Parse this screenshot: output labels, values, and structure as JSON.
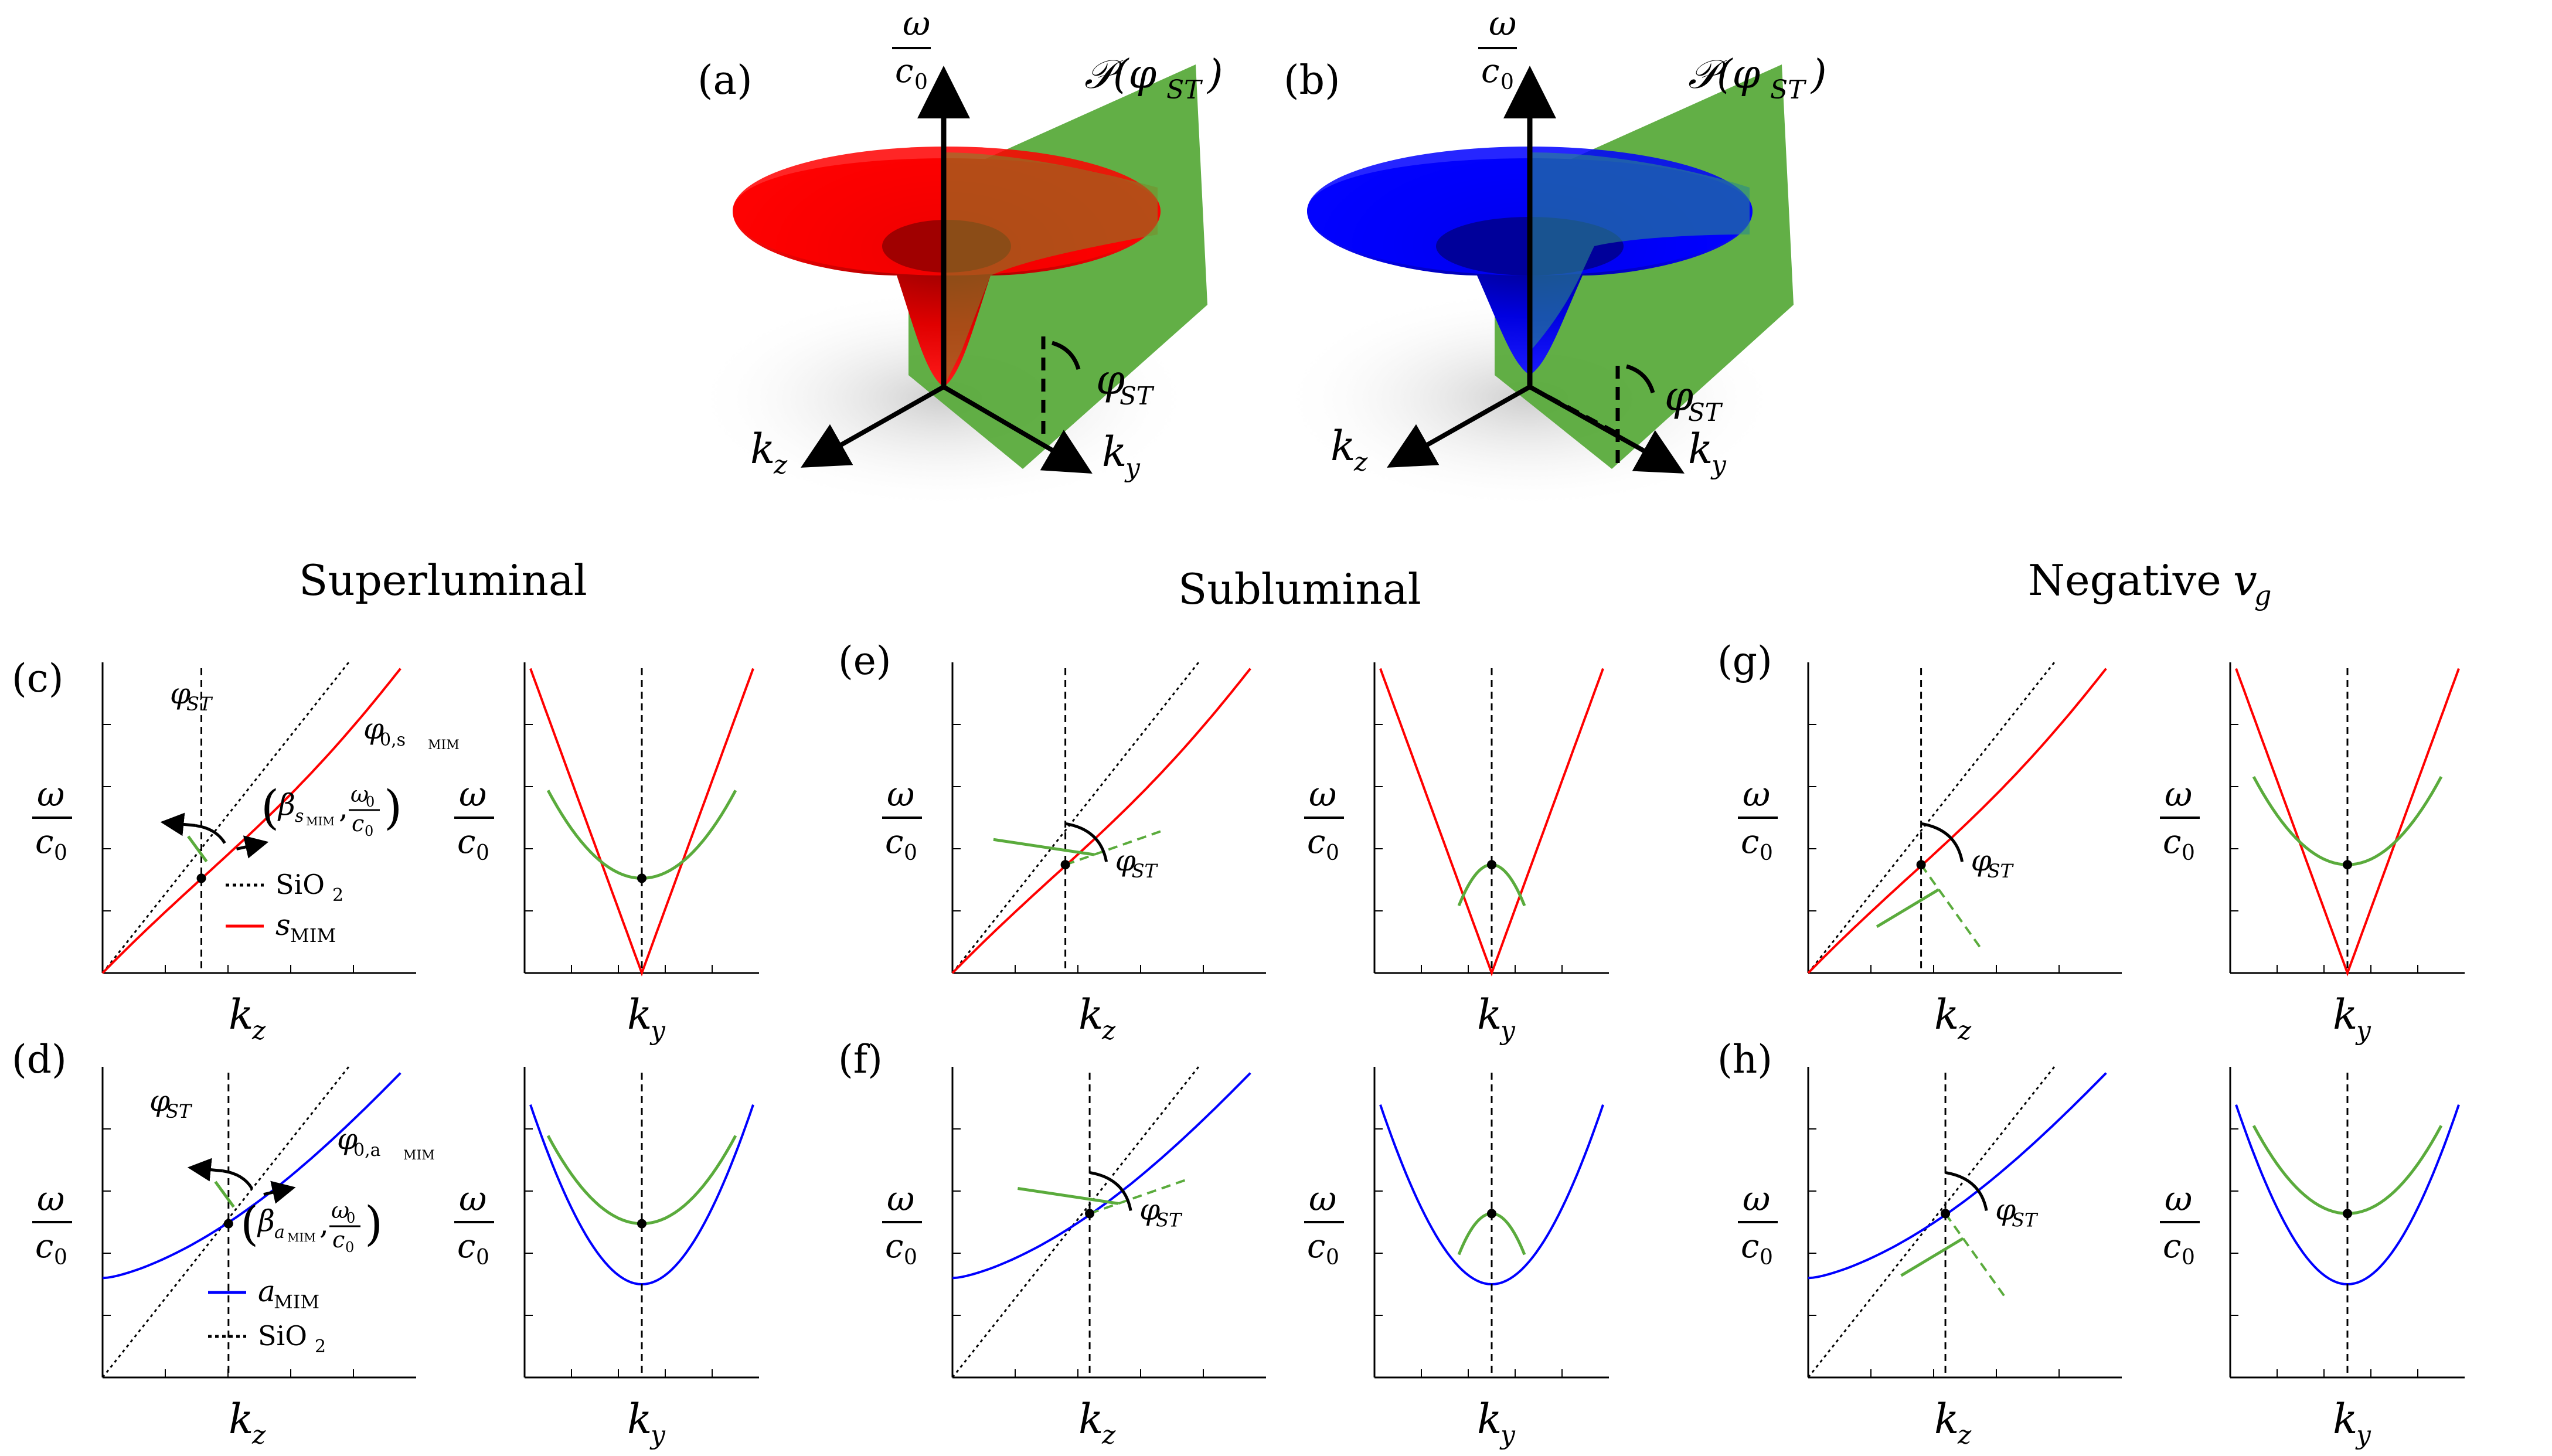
{
  "panel_labels": {
    "a": "(a)",
    "b": "(b)",
    "c": "(c)",
    "d": "(d)",
    "e": "(e)",
    "f": "(f)",
    "g": "(g)",
    "h": "(h)"
  },
  "column_titles": {
    "superluminal": "Superluminal",
    "subluminal": "Subluminal",
    "negative": "Negative ",
    "negative_sym": "v",
    "negative_sub": "g"
  },
  "symbols": {
    "omega": "ω",
    "c0": "c",
    "c0_sub": "0",
    "kz": "k",
    "kz_sub": "z",
    "ky": "k",
    "ky_sub": "y",
    "phi": "φ",
    "phi_sub": "ST",
    "plane": "𝒫(φ",
    "plane_sub": "ST",
    "plane_close": ")",
    "phi0": "φ",
    "phi0_sub_s": "0,s",
    "phi0_sub_a": "0,a",
    "mim": "MIM",
    "beta": "β",
    "beta_sub_s": "s",
    "beta_sub_a": "a",
    "omega0": "ω",
    "omega0_sub": "0"
  },
  "legend_c": {
    "sio2": "SiO",
    "sio2_sub": "2",
    "mode": "s",
    "mode_sub": "MIM"
  },
  "legend_d": {
    "mode": "a",
    "mode_sub": "MIM",
    "sio2": "SiO",
    "sio2_sub": "2"
  },
  "colors": {
    "symmetric": "#ff0000",
    "antisymmetric": "#0000ff",
    "plane": "#5aab3c",
    "light_line": "#000000",
    "axis": "#000000"
  },
  "chart_data": [
    {
      "type": "line",
      "panel": "c",
      "xlabel": "k_z",
      "ylabel": "ω/c0",
      "series": [
        {
          "name": "SiO2",
          "style": "dotted"
        },
        {
          "name": "s_MIM",
          "color": "#ff0000"
        }
      ],
      "annotations": [
        "φ_ST",
        "φ_0,s_MIM",
        "(β_s_MIM, ω0/c0)"
      ]
    },
    {
      "type": "line",
      "panel": "c-right",
      "xlabel": "k_y",
      "ylabel": "ω/c0",
      "series": [
        {
          "name": "s_MIM cone",
          "color": "#ff0000"
        },
        {
          "name": "ST spectrum",
          "color": "#5aab3c",
          "shape": "hyperbola-up"
        }
      ]
    },
    {
      "type": "line",
      "panel": "d",
      "xlabel": "k_z",
      "ylabel": "ω/c0",
      "series": [
        {
          "name": "a_MIM",
          "color": "#0000ff"
        },
        {
          "name": "SiO2",
          "style": "dotted"
        }
      ],
      "annotations": [
        "φ_ST",
        "φ_0,a_MIM",
        "(β_a_MIM, ω0/c0)"
      ]
    },
    {
      "type": "line",
      "panel": "d-right",
      "xlabel": "k_y",
      "ylabel": "ω/c0",
      "series": [
        {
          "name": "a_MIM",
          "color": "#0000ff"
        },
        {
          "name": "ST spectrum",
          "color": "#5aab3c",
          "shape": "hyperbola-up"
        }
      ]
    },
    {
      "type": "line",
      "panel": "e",
      "xlabel": "k_z",
      "ylabel": "ω/c0",
      "annotations": [
        "φ_ST"
      ]
    },
    {
      "type": "line",
      "panel": "e-right",
      "xlabel": "k_y",
      "ylabel": "ω/c0",
      "series": [
        {
          "name": "ST spectrum",
          "shape": "ellipse-down"
        }
      ]
    },
    {
      "type": "line",
      "panel": "f",
      "xlabel": "k_z",
      "ylabel": "ω/c0",
      "annotations": [
        "φ_ST"
      ]
    },
    {
      "type": "line",
      "panel": "f-right",
      "xlabel": "k_y",
      "ylabel": "ω/c0",
      "series": [
        {
          "name": "ST spectrum",
          "shape": "ellipse-down"
        }
      ]
    },
    {
      "type": "line",
      "panel": "g",
      "xlabel": "k_z",
      "ylabel": "ω/c0",
      "annotations": [
        "φ_ST"
      ]
    },
    {
      "type": "line",
      "panel": "g-right",
      "xlabel": "k_y",
      "ylabel": "ω/c0",
      "series": [
        {
          "name": "ST spectrum",
          "shape": "hyperbola-up"
        }
      ]
    },
    {
      "type": "line",
      "panel": "h",
      "xlabel": "k_z",
      "ylabel": "ω/c0",
      "annotations": [
        "φ_ST"
      ]
    },
    {
      "type": "line",
      "panel": "h-right",
      "xlabel": "k_y",
      "ylabel": "ω/c0",
      "series": [
        {
          "name": "ST spectrum",
          "shape": "hyperbola-up"
        }
      ]
    }
  ]
}
